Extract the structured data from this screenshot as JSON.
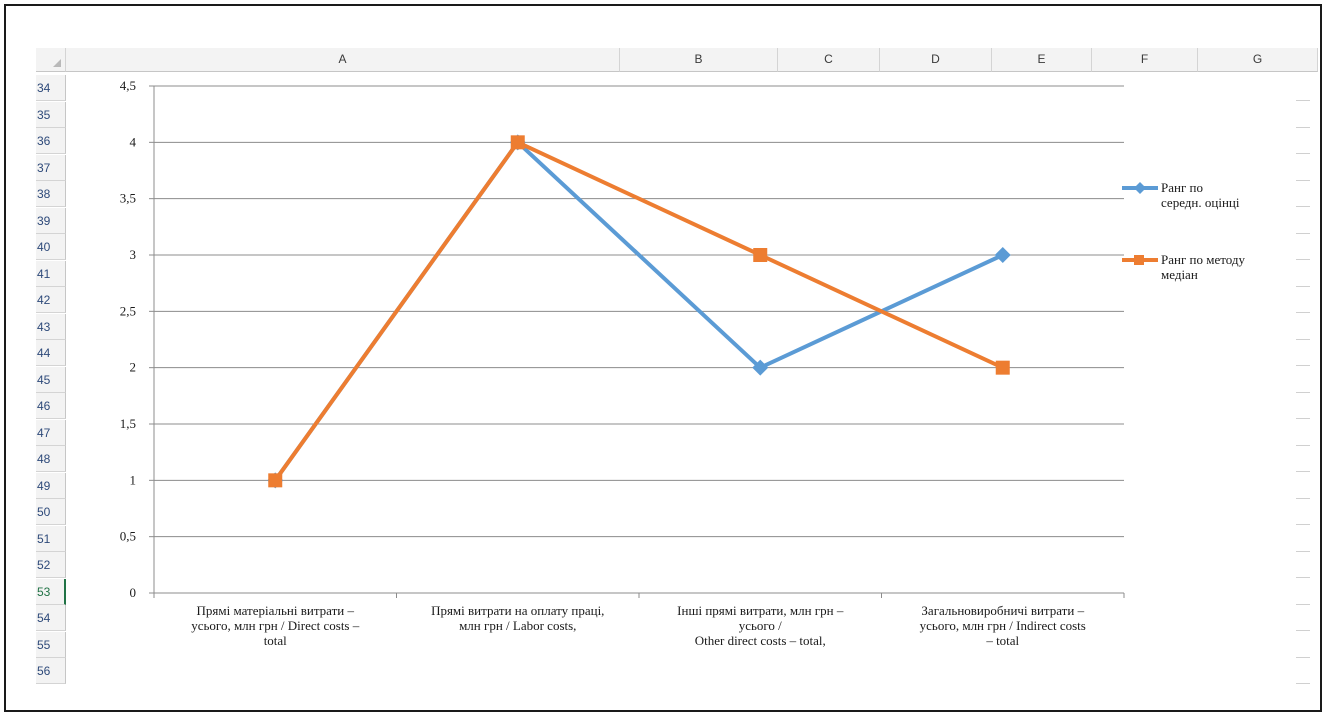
{
  "spreadsheet": {
    "columns": [
      "A",
      "B",
      "C",
      "D",
      "E",
      "F",
      "G"
    ],
    "rows": [
      "34",
      "35",
      "36",
      "37",
      "38",
      "39",
      "40",
      "41",
      "42",
      "43",
      "44",
      "45",
      "46",
      "47",
      "48",
      "49",
      "50",
      "51",
      "52",
      "53",
      "54",
      "55",
      "56"
    ],
    "selected_row": "53"
  },
  "chart_data": {
    "type": "line",
    "categories": [
      [
        "Прямі матеріальні витрати –",
        "усього, млн грн / Direct costs –",
        "total"
      ],
      [
        "Прямі витрати на оплату праці,",
        "млн грн / Labor costs,"
      ],
      [
        "Інші прямі витрати, млн грн –",
        "усього /",
        "Other direct costs – total,"
      ],
      [
        "Загальновиробничі витрати –",
        "усього, млн грн  / Indirect costs",
        "– total"
      ]
    ],
    "series": [
      {
        "name": [
          "Ранг по",
          "середн. оцінці"
        ],
        "values": [
          1,
          4,
          2,
          3
        ],
        "color": "#5b9bd5",
        "marker": "diamond"
      },
      {
        "name": [
          "Ранг по методу",
          "медіан"
        ],
        "values": [
          1,
          4,
          3,
          2
        ],
        "color": "#ed7d31",
        "marker": "square"
      }
    ],
    "yticks": [
      "0",
      "0,5",
      "1",
      "1,5",
      "2",
      "2,5",
      "3",
      "3,5",
      "4",
      "4,5"
    ],
    "ylim": [
      0,
      4.5
    ],
    "grid": true,
    "legend": "right"
  }
}
